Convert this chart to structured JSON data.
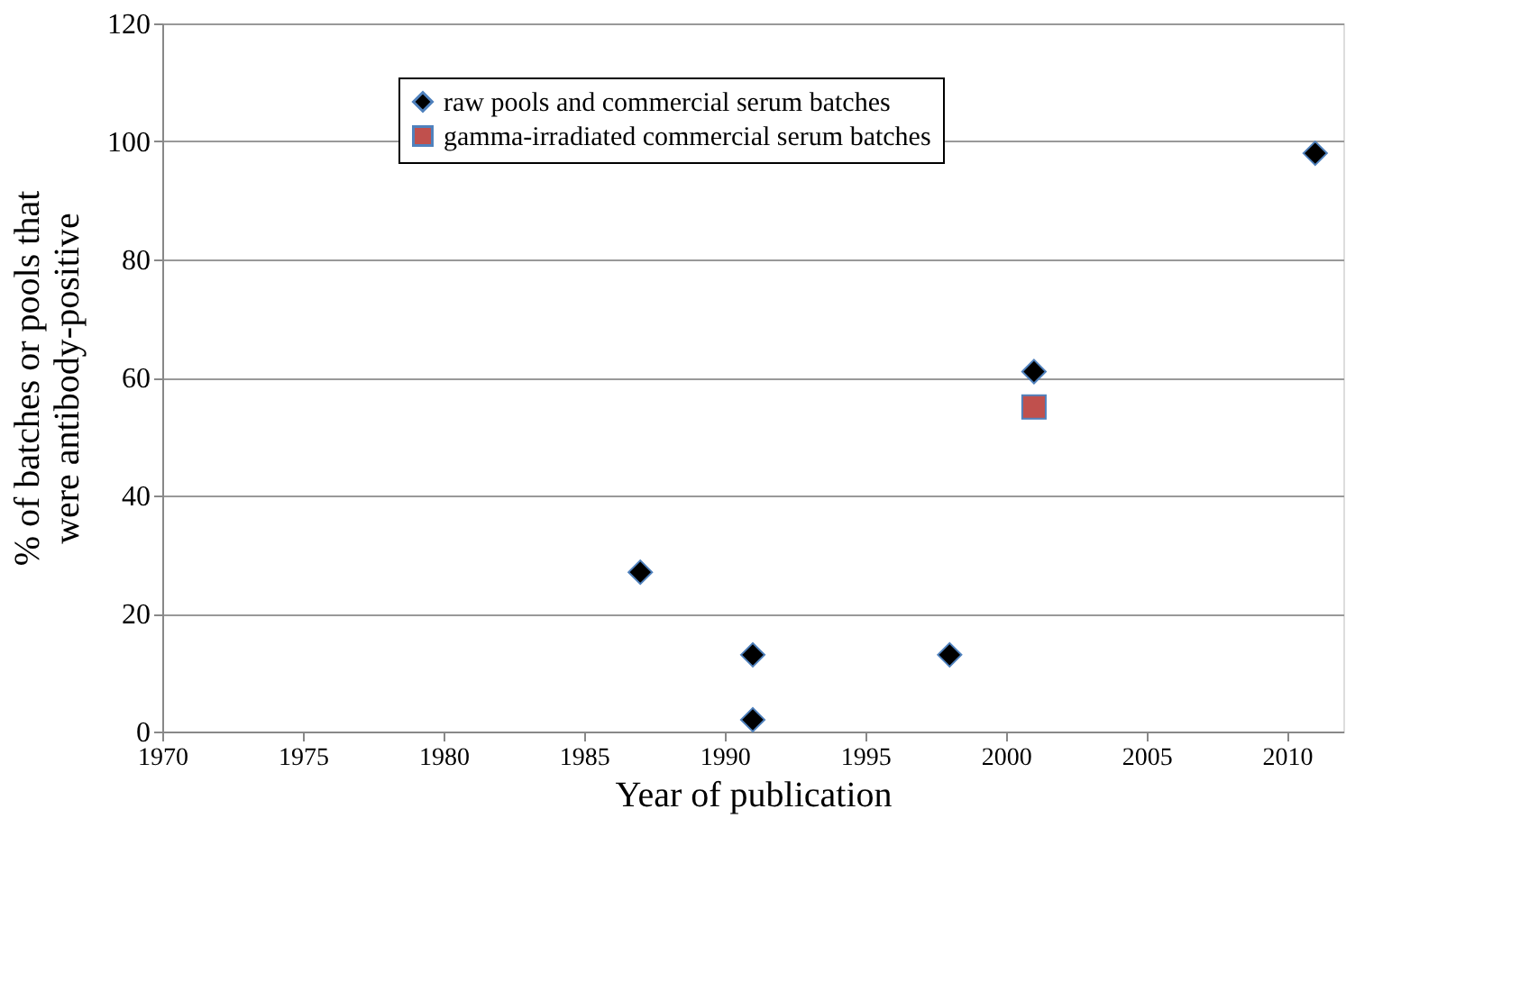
{
  "chart_data": {
    "type": "scatter",
    "xlabel": "Year of publication",
    "ylabel": "% of batches or pools that\nwere antibody-positive",
    "series": [
      {
        "name": "raw pools and commercial serum batches",
        "color": "#000000",
        "marker": "diamond",
        "x": [
          1987,
          1991,
          1991,
          1998,
          2001,
          2011
        ],
        "values": [
          27,
          13,
          2,
          13,
          61,
          98
        ]
      },
      {
        "name": "gamma-irradiated commercial serum batches",
        "color": "#c0504d",
        "marker": "square",
        "x": [
          2001
        ],
        "values": [
          55
        ]
      }
    ],
    "xlim": [
      1970,
      2012
    ],
    "xticks": [
      1970,
      1975,
      1980,
      1985,
      1990,
      1995,
      2000,
      2005,
      2010
    ],
    "ylim": [
      0,
      120
    ],
    "yticks": [
      0,
      20,
      40,
      60,
      80,
      100,
      120
    ],
    "grid": "y",
    "legend": "top"
  }
}
